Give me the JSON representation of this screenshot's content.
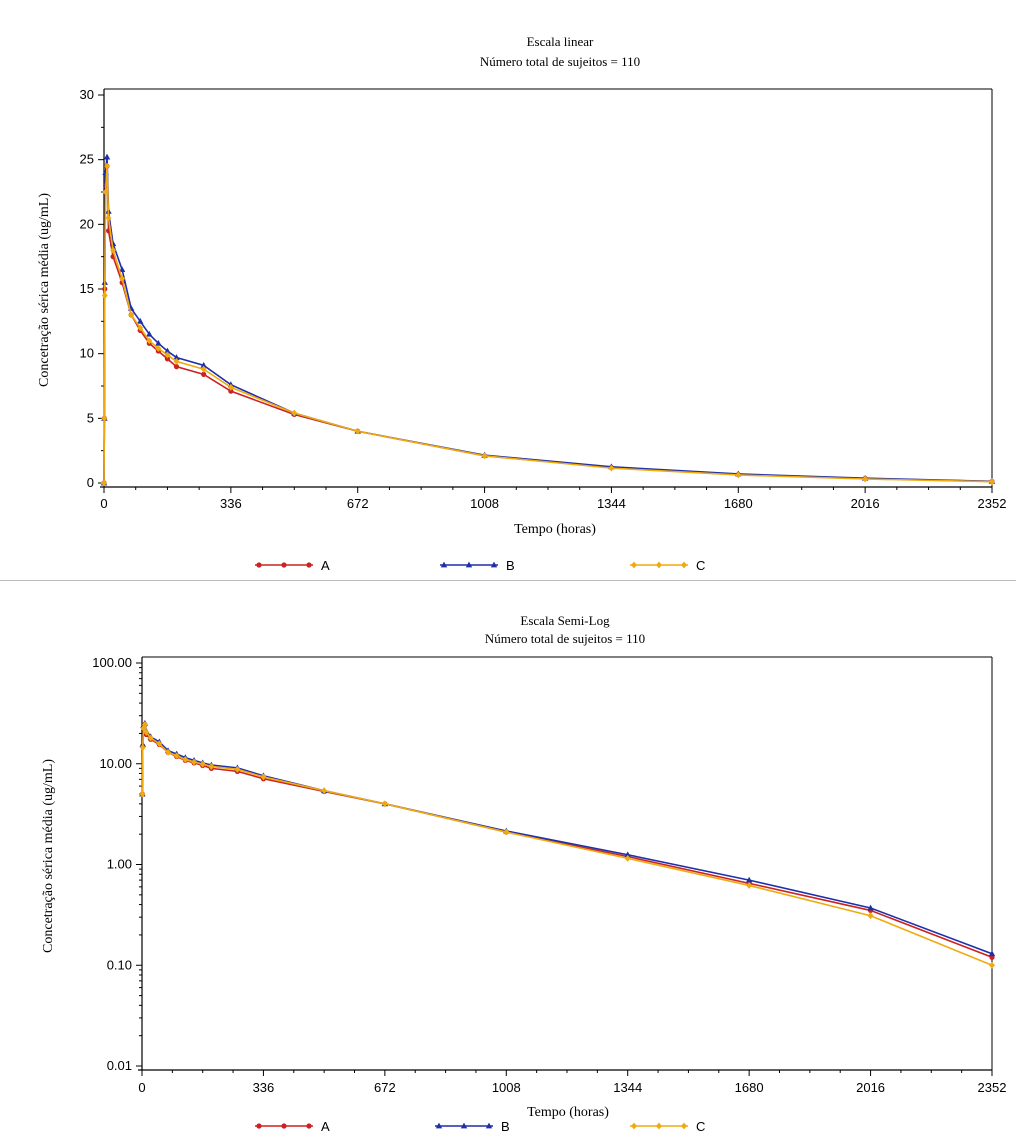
{
  "chart_data": [
    {
      "type": "line",
      "title": "Escala linear",
      "subtitle": "Número total de sujeitos = 110",
      "xlabel": "Tempo (horas)",
      "ylabel": "Concetração sérica média (ug/mL)",
      "xlim": [
        0,
        2352
      ],
      "ylim": [
        0,
        30
      ],
      "x_ticks": [
        "0",
        "336",
        "672",
        "1008",
        "1344",
        "1680",
        "2016",
        "2352"
      ],
      "y_ticks": [
        "0",
        "5",
        "10",
        "15",
        "20",
        "25",
        "30"
      ],
      "grid": false,
      "legend_position": "bottom",
      "series": [
        {
          "name": "A",
          "color": "#cc2222",
          "marker": "circle",
          "x": [
            0,
            1,
            2,
            4,
            8,
            12,
            24,
            48,
            72,
            96,
            120,
            144,
            168,
            192,
            264,
            336,
            504,
            672,
            1008,
            1344,
            1680,
            2016,
            2352
          ],
          "y": [
            0,
            5,
            15,
            23,
            24.5,
            19.5,
            17.5,
            15.5,
            13,
            11.8,
            10.8,
            10.2,
            9.6,
            9.0,
            8.4,
            7.1,
            5.3,
            4.0,
            2.1,
            1.2,
            0.65,
            0.35,
            0.12
          ]
        },
        {
          "name": "B",
          "color": "#1f2fa8",
          "marker": "triangle",
          "x": [
            0,
            1,
            2,
            4,
            8,
            12,
            24,
            48,
            72,
            96,
            120,
            144,
            168,
            192,
            264,
            336,
            504,
            672,
            1008,
            1344,
            1680,
            2016,
            2352
          ],
          "y": [
            0,
            5,
            15.5,
            24,
            25.2,
            21,
            18.5,
            16.5,
            13.5,
            12.5,
            11.5,
            10.8,
            10.2,
            9.7,
            9.1,
            7.6,
            5.4,
            4.0,
            2.15,
            1.25,
            0.7,
            0.37,
            0.13
          ]
        },
        {
          "name": "C",
          "color": "#f0aa10",
          "marker": "diamond",
          "x": [
            0,
            1,
            2,
            4,
            8,
            12,
            24,
            48,
            72,
            96,
            120,
            144,
            168,
            192,
            264,
            336,
            504,
            672,
            1008,
            1344,
            1680,
            2016,
            2352
          ],
          "y": [
            0,
            5,
            14.5,
            22.5,
            24.5,
            20.5,
            18.0,
            15.8,
            13.0,
            12.0,
            11.0,
            10.4,
            9.9,
            9.4,
            8.8,
            7.4,
            5.4,
            4.0,
            2.1,
            1.15,
            0.62,
            0.31,
            0.1
          ]
        }
      ]
    },
    {
      "type": "line",
      "title": "Escala Semi-Log",
      "subtitle": "Número total de sujeitos = 110",
      "xlabel": "Tempo (horas)",
      "ylabel": "Concetração sérica média (ug/mL)",
      "xlim": [
        0,
        2352
      ],
      "ylim": [
        0.01,
        100
      ],
      "y_scale": "log",
      "x_ticks": [
        "0",
        "336",
        "672",
        "1008",
        "1344",
        "1680",
        "2016",
        "2352"
      ],
      "y_ticks": [
        "0.01",
        "0.10",
        "1.00",
        "10.00",
        "100.00"
      ],
      "grid": false,
      "legend_position": "bottom",
      "series": [
        {
          "name": "A",
          "color": "#cc2222",
          "marker": "circle",
          "x": [
            1,
            2,
            4,
            8,
            12,
            24,
            48,
            72,
            96,
            120,
            144,
            168,
            192,
            264,
            336,
            504,
            672,
            1008,
            1344,
            1680,
            2016,
            2352
          ],
          "y": [
            5,
            15,
            23,
            24.5,
            19.5,
            17.5,
            15.5,
            13,
            11.8,
            10.8,
            10.2,
            9.6,
            9.0,
            8.4,
            7.1,
            5.3,
            4.0,
            2.1,
            1.2,
            0.65,
            0.35,
            0.12
          ]
        },
        {
          "name": "B",
          "color": "#1f2fa8",
          "marker": "triangle",
          "x": [
            1,
            2,
            4,
            8,
            12,
            24,
            48,
            72,
            96,
            120,
            144,
            168,
            192,
            264,
            336,
            504,
            672,
            1008,
            1344,
            1680,
            2016,
            2352
          ],
          "y": [
            5,
            15.5,
            24,
            25.2,
            21,
            18.5,
            16.5,
            13.5,
            12.5,
            11.5,
            10.8,
            10.2,
            9.7,
            9.1,
            7.6,
            5.4,
            4.0,
            2.15,
            1.25,
            0.7,
            0.37,
            0.13
          ]
        },
        {
          "name": "C",
          "color": "#f0aa10",
          "marker": "diamond",
          "x": [
            1,
            2,
            4,
            8,
            12,
            24,
            48,
            72,
            96,
            120,
            144,
            168,
            192,
            264,
            336,
            504,
            672,
            1008,
            1344,
            1680,
            2016,
            2352
          ],
          "y": [
            5,
            14.5,
            22.5,
            24.5,
            20.5,
            18.0,
            15.8,
            13.0,
            12.0,
            11.0,
            10.4,
            9.9,
            9.4,
            8.8,
            7.4,
            5.4,
            4.0,
            2.1,
            1.15,
            0.62,
            0.31,
            0.1
          ]
        }
      ]
    }
  ]
}
